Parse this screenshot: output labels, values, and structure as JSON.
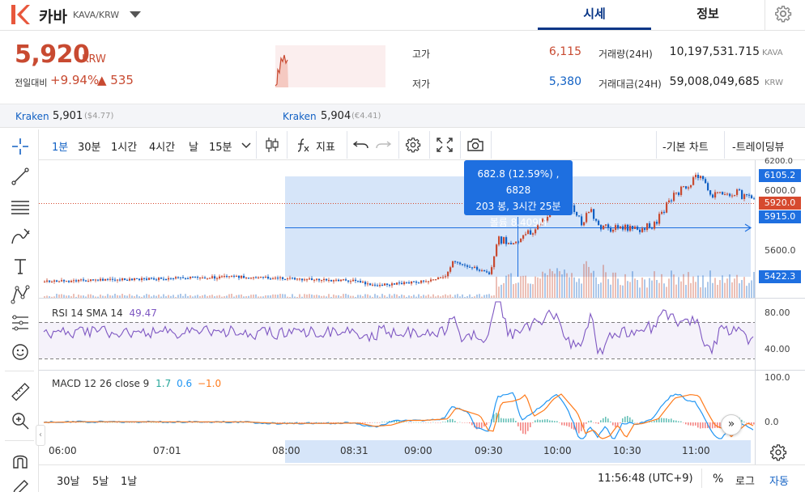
{
  "header": {
    "coin_name": "카바",
    "pair": "KAVA/KRW",
    "tabs": [
      {
        "label": "시세",
        "active": true
      },
      {
        "label": "정보",
        "active": false
      }
    ],
    "icons": [
      "logo-k-icon",
      "chevron-down-icon",
      "gear-icon"
    ]
  },
  "summary": {
    "price": "5,920",
    "unit": "KRW",
    "change_label": "전일대비",
    "change_pct": "+9.94%",
    "change_abs": "▲ 535",
    "high_label": "고가",
    "high_value": "6,115",
    "low_label": "저가",
    "low_value": "5,380",
    "volume_label": "거래량(24H)",
    "volume_value": "10,197,531.715",
    "volume_unit": "KAVA",
    "amount_label": "거래대금(24H)",
    "amount_value": "59,008,049,685",
    "amount_unit": "KRW"
  },
  "exchanges": [
    {
      "name": "Kraken",
      "value": "5,901",
      "sub": "($4.77)"
    },
    {
      "name": "Kraken",
      "value": "5,904",
      "sub": "(€4.41)"
    }
  ],
  "toolbar": {
    "intervals": [
      {
        "label": "1분",
        "active": true
      },
      {
        "label": "30분",
        "active": false
      },
      {
        "label": "1시간",
        "active": false
      },
      {
        "label": "4시간",
        "active": false
      },
      {
        "label": "날",
        "active": false
      },
      {
        "label": "15분",
        "active": false
      }
    ],
    "indicators_label": "지표",
    "basic_chart_label": "-기본 차트",
    "tradingview_label": "-트레이딩뷰",
    "icons": [
      "candlestick-icon",
      "function-icon",
      "undo-icon",
      "redo-icon",
      "settings-icon",
      "fullscreen-icon",
      "camera-icon"
    ]
  },
  "left_tools": [
    "crosshair-icon",
    "trendline-icon",
    "horizontal-lines-icon",
    "brush-icon",
    "text-icon",
    "pattern-icon",
    "projection-icon",
    "emoji-icon",
    "ruler-icon",
    "zoom-in-icon",
    "magnet-icon",
    "pencil-lock-icon"
  ],
  "chart": {
    "price_axis": [
      "6200.0",
      "6000.0",
      "5600.0"
    ],
    "price_tags": [
      {
        "label": "6105.2",
        "color": "#1e6fe0"
      },
      {
        "label": "5920.0",
        "color": "#d64a2f"
      },
      {
        "label": "5915.0",
        "color": "#1e6fe0"
      },
      {
        "label": "5422.3",
        "color": "#1e6fe0"
      }
    ],
    "tooltip_lines": [
      "682.8 (12.59%) , 6828",
      "203 봉, 3시간 25분",
      "볼륨 8.409M"
    ],
    "rsi": {
      "label": "RSI 14 SMA 14",
      "value": "49.47",
      "axis": [
        "80.00",
        "40.00"
      ]
    },
    "macd": {
      "label": "MACD 12 26 close 9",
      "v1": "1.7",
      "v2": "0.6",
      "v3": "−1.0",
      "axis": [
        "100.0",
        "0.0"
      ]
    },
    "time_axis": [
      "06:00",
      "07:01",
      "08:00",
      "08:31",
      "09:00",
      "09:30",
      "10:00",
      "10:30",
      "11:00"
    ]
  },
  "bottom": {
    "ranges": [
      "30날",
      "5날",
      "1날"
    ],
    "clock": "11:56:48 (UTC+9)",
    "percent_label": "%",
    "log_label": "로그",
    "auto_label": "자동"
  },
  "colors": {
    "up": "#c84a31",
    "down": "#1261c4",
    "accent": "#093687",
    "selection": "#1e6fe0"
  }
}
